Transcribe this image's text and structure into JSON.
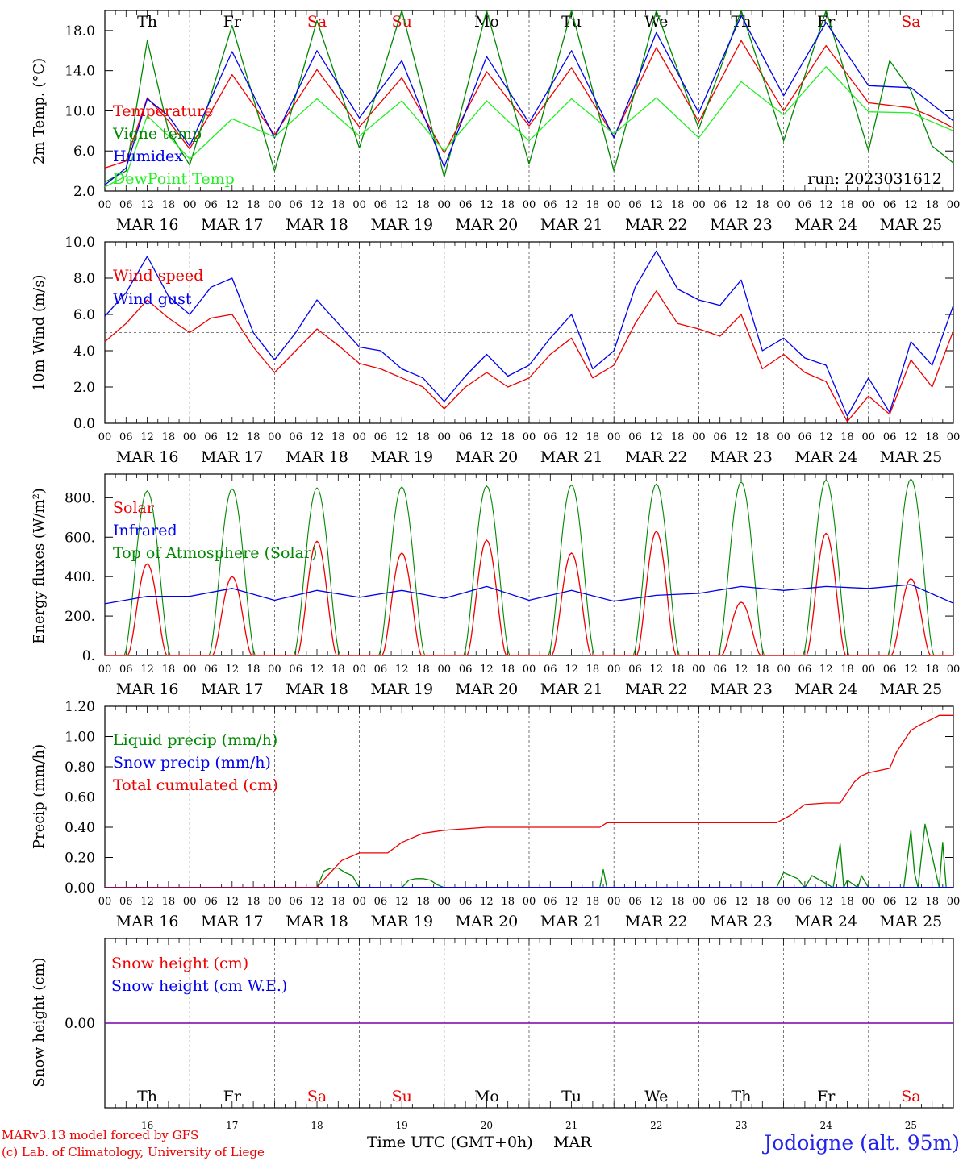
{
  "days": [
    "Th",
    "Fr",
    "Sa",
    "Su",
    "Mo",
    "Tu",
    "We",
    "Th",
    "Fr",
    "Sa"
  ],
  "weekend": [
    false,
    false,
    true,
    true,
    false,
    false,
    false,
    false,
    false,
    true
  ],
  "dates": [
    "MAR 16",
    "MAR 17",
    "MAR 18",
    "MAR 19",
    "MAR 20",
    "MAR 21",
    "MAR 22",
    "MAR 23",
    "MAR 24",
    "MAR 25"
  ],
  "date_nums": [
    "16",
    "17",
    "18",
    "19",
    "20",
    "21",
    "22",
    "23",
    "24",
    "25"
  ],
  "hour_labels": [
    "00",
    "06",
    "12",
    "18"
  ],
  "end_hour_label": "00",
  "run_label": "run: 2023031612",
  "xaxis_label": "Time UTC (GMT+0h)",
  "xaxis_month": "MAR",
  "credit_line1": "MARv3.13 model forced by GFS",
  "credit_line2": "(c) Lab. of Climatology, University of Liege",
  "station": "Jodoigne (alt. 95m)",
  "colors": {
    "red": "#ee0000",
    "green": "#008800",
    "blue": "#0000ee",
    "lightgreen": "#22ee22",
    "purple": "#7700aa"
  },
  "chart_data": [
    {
      "type": "line",
      "ylabel": "2m Temp. (°C)",
      "ylim": [
        2,
        20
      ],
      "yticks": [
        "2.0",
        "6.0",
        "10.0",
        "14.0",
        "18.0"
      ],
      "ytick_values": [
        2,
        6,
        10,
        14,
        18
      ],
      "x_unit": "hours since MAR 16 00 UTC",
      "series": [
        {
          "name": "Temperature",
          "color": "red",
          "x": [
            0,
            6,
            12,
            18,
            24,
            36,
            48,
            60,
            72,
            84,
            96,
            108,
            120,
            132,
            144,
            156,
            168,
            180,
            192,
            204,
            216,
            228,
            234,
            240
          ],
          "y": [
            4.3,
            5.0,
            11.3,
            9.0,
            6.2,
            13.6,
            7.6,
            14.1,
            8.4,
            13.3,
            5.8,
            13.9,
            8.5,
            14.3,
            7.4,
            16.3,
            8.9,
            17.0,
            10.0,
            16.5,
            10.8,
            10.3,
            9.4,
            8.3
          ]
        },
        {
          "name": "Vigne temp",
          "color": "green",
          "x": [
            0,
            6,
            12,
            18,
            24,
            36,
            48,
            60,
            72,
            84,
            96,
            108,
            120,
            132,
            144,
            156,
            168,
            180,
            192,
            204,
            216,
            222,
            228,
            234,
            240
          ],
          "y": [
            2.9,
            4.0,
            17.0,
            8.0,
            4.6,
            18.5,
            4.0,
            19.0,
            6.3,
            20.5,
            3.4,
            20.5,
            4.7,
            20.5,
            4.0,
            21.0,
            8.2,
            20.5,
            7.0,
            20.8,
            6.0,
            15.0,
            12.0,
            6.5,
            4.8
          ]
        },
        {
          "name": "Humidex",
          "color": "blue",
          "x": [
            0,
            6,
            12,
            18,
            24,
            36,
            48,
            60,
            72,
            84,
            96,
            108,
            120,
            132,
            144,
            156,
            168,
            180,
            192,
            204,
            216,
            228,
            240
          ],
          "y": [
            2.6,
            4.3,
            11.2,
            9.5,
            6.5,
            15.9,
            7.3,
            16.0,
            9.3,
            15.0,
            4.4,
            15.4,
            8.8,
            16.0,
            7.3,
            17.8,
            9.8,
            19.5,
            11.5,
            18.8,
            12.5,
            12.3,
            9.0
          ]
        },
        {
          "name": "DewPoint Temp",
          "color": "lightgreen",
          "x": [
            0,
            6,
            12,
            18,
            24,
            36,
            48,
            60,
            72,
            84,
            96,
            108,
            120,
            132,
            144,
            156,
            168,
            180,
            192,
            204,
            216,
            228,
            240
          ],
          "y": [
            2.4,
            3.5,
            9.5,
            7.5,
            5.2,
            9.2,
            7.4,
            11.2,
            7.5,
            11.0,
            6.0,
            11.0,
            7.0,
            11.2,
            7.7,
            11.3,
            7.3,
            12.9,
            9.6,
            14.4,
            9.9,
            9.8,
            8.0
          ]
        }
      ]
    },
    {
      "type": "line",
      "ylabel": "10m Wind (m/s)",
      "ylim": [
        0,
        10
      ],
      "yticks": [
        "0.0",
        "2.0",
        "4.0",
        "6.0",
        "8.0",
        "10.0"
      ],
      "ytick_values": [
        0,
        2,
        4,
        6,
        8,
        10
      ],
      "reference_line": 5,
      "x_unit": "hours since MAR 16 00 UTC",
      "series": [
        {
          "name": "Wind speed",
          "color": "red",
          "x": [
            0,
            6,
            12,
            18,
            24,
            30,
            36,
            42,
            48,
            54,
            60,
            66,
            72,
            78,
            84,
            90,
            96,
            102,
            108,
            114,
            120,
            126,
            132,
            138,
            144,
            150,
            156,
            162,
            168,
            174,
            180,
            186,
            192,
            198,
            204,
            210,
            216,
            222,
            228,
            234,
            240
          ],
          "y": [
            4.5,
            5.5,
            6.8,
            5.8,
            5.0,
            5.8,
            6.0,
            4.2,
            2.8,
            4.0,
            5.2,
            4.3,
            3.3,
            3.0,
            2.5,
            2.0,
            0.8,
            2.0,
            2.8,
            2.0,
            2.5,
            3.8,
            4.7,
            2.5,
            3.2,
            5.5,
            7.3,
            5.5,
            5.2,
            4.8,
            6.0,
            3.0,
            3.8,
            2.8,
            2.3,
            0.1,
            1.5,
            0.5,
            3.5,
            2.0,
            5.1
          ]
        },
        {
          "name": "Wind gust",
          "color": "blue",
          "x": [
            0,
            6,
            12,
            18,
            24,
            30,
            36,
            42,
            48,
            54,
            60,
            66,
            72,
            78,
            84,
            90,
            96,
            102,
            108,
            114,
            120,
            126,
            132,
            138,
            144,
            150,
            156,
            162,
            168,
            174,
            180,
            186,
            192,
            198,
            204,
            210,
            216,
            222,
            228,
            234,
            240
          ],
          "y": [
            5.9,
            7.2,
            9.2,
            7.0,
            6.0,
            7.5,
            8.0,
            5.0,
            3.5,
            5.0,
            6.8,
            5.5,
            4.2,
            4.0,
            3.0,
            2.5,
            1.2,
            2.6,
            3.8,
            2.6,
            3.2,
            4.7,
            6.0,
            3.0,
            4.0,
            7.5,
            9.5,
            7.4,
            6.8,
            6.5,
            7.9,
            4.0,
            4.7,
            3.6,
            3.2,
            0.4,
            2.5,
            0.6,
            4.5,
            3.2,
            6.5
          ]
        }
      ]
    },
    {
      "type": "line",
      "ylabel": "Energy fluxes (W/m²)",
      "ylim": [
        0,
        920
      ],
      "yticks": [
        "0.",
        "200.",
        "400.",
        "600.",
        "800."
      ],
      "ytick_values": [
        0,
        200,
        400,
        600,
        800
      ],
      "x_unit": "hours since MAR 16 00 UTC",
      "series": [
        {
          "name": "Solar",
          "color": "red",
          "daily_peak": [
            465,
            400,
            580,
            520,
            585,
            520,
            630,
            270,
            620,
            390
          ]
        },
        {
          "name": "Infrared",
          "color": "blue",
          "x": [
            0,
            12,
            24,
            36,
            48,
            60,
            72,
            84,
            96,
            108,
            120,
            132,
            144,
            156,
            168,
            180,
            192,
            204,
            216,
            228,
            240
          ],
          "y": [
            262,
            300,
            300,
            340,
            280,
            330,
            295,
            330,
            290,
            350,
            280,
            330,
            275,
            305,
            315,
            350,
            330,
            350,
            340,
            360,
            265
          ]
        },
        {
          "name": "Top of Atmosphere (Solar)",
          "color": "green",
          "daily_peak": [
            835,
            845,
            850,
            855,
            860,
            865,
            870,
            880,
            890,
            895
          ]
        }
      ]
    },
    {
      "type": "line",
      "ylabel": "Precip (mm/h)",
      "ylim": [
        0,
        1.2
      ],
      "yticks": [
        "0.00",
        "0.20",
        "0.40",
        "0.60",
        "0.80",
        "1.00",
        "1.20"
      ],
      "ytick_values": [
        0,
        0.2,
        0.4,
        0.6,
        0.8,
        1.0,
        1.2
      ],
      "x_unit": "hours since MAR 16 00 UTC",
      "series": [
        {
          "name": "Liquid precip (mm/h)",
          "color": "green",
          "x": [
            0,
            60,
            62,
            64,
            66,
            68,
            70,
            72,
            84,
            86,
            88,
            90,
            92,
            94,
            96,
            140,
            141,
            142,
            190,
            192,
            194,
            196,
            198,
            200,
            206,
            208,
            209,
            210,
            213,
            214,
            215,
            216,
            226,
            228,
            229,
            230,
            232,
            236,
            237,
            238,
            240
          ],
          "y": [
            0,
            0,
            0.11,
            0.13,
            0.13,
            0.1,
            0.08,
            0,
            0,
            0.05,
            0.06,
            0.06,
            0.05,
            0.02,
            0,
            0,
            0.12,
            0,
            0,
            0.1,
            0.08,
            0.06,
            0,
            0.08,
            0,
            0.29,
            0,
            0.05,
            0,
            0.08,
            0.04,
            0,
            0,
            0.38,
            0.1,
            0,
            0.42,
            0,
            0.3,
            0,
            0
          ]
        },
        {
          "name": "Snow precip (mm/h)",
          "color": "blue",
          "x": [
            0,
            240
          ],
          "y": [
            0,
            0
          ]
        },
        {
          "name": "Total cumulated (cm)",
          "color": "red",
          "x": [
            0,
            40,
            60,
            63,
            67,
            72,
            80,
            84,
            90,
            96,
            108,
            140,
            142,
            160,
            190,
            194,
            198,
            204,
            208,
            212,
            214,
            216,
            222,
            224,
            226,
            228,
            230,
            236,
            240
          ],
          "y": [
            0,
            0.0,
            0.0,
            0.08,
            0.18,
            0.23,
            0.23,
            0.3,
            0.36,
            0.38,
            0.4,
            0.4,
            0.43,
            0.43,
            0.43,
            0.48,
            0.55,
            0.56,
            0.56,
            0.7,
            0.74,
            0.76,
            0.79,
            0.9,
            0.97,
            1.04,
            1.07,
            1.14,
            1.14
          ]
        }
      ]
    },
    {
      "type": "line",
      "ylabel": "Snow height (cm)",
      "ylim": [
        -1,
        1
      ],
      "yticks": [
        "0.00"
      ],
      "ytick_values": [
        0
      ],
      "x_unit": "hours since MAR 16 00 UTC",
      "series": [
        {
          "name": "Snow height (cm)",
          "color": "red",
          "x": [
            0,
            240
          ],
          "y": [
            0,
            0
          ]
        },
        {
          "name": "Snow height (cm W.E.)",
          "color": "blue",
          "x": [
            0,
            240
          ],
          "y": [
            0,
            0
          ]
        }
      ]
    }
  ]
}
